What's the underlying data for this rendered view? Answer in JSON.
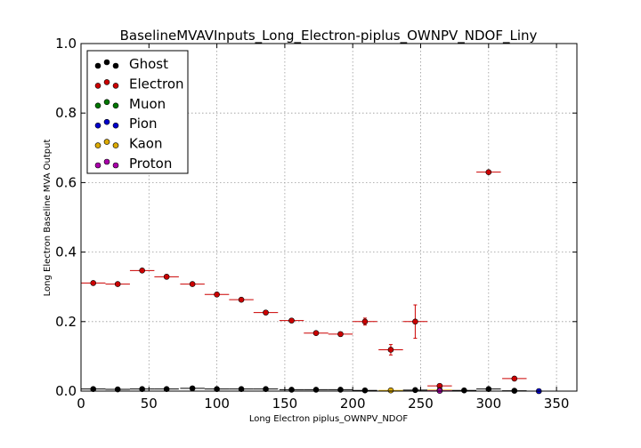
{
  "chart_data": {
    "type": "scatter",
    "title": "BaselineMVAVInputs_Long_Electron-piplus_OWNPV_NDOF_Liny",
    "xlabel": "Long Electron piplus_OWNPV_NDOF",
    "ylabel": "Long Electron Baseline MVA Output",
    "xlim": [
      0,
      365
    ],
    "ylim": [
      0,
      1.0
    ],
    "xticks": [
      0,
      50,
      100,
      150,
      200,
      250,
      300,
      350
    ],
    "yticks": [
      "0.0",
      "0.2",
      "0.4",
      "0.6",
      "0.8",
      "1.0"
    ],
    "grid": true,
    "legend_position": "top-left",
    "series": [
      {
        "name": "Ghost",
        "color": "#000000",
        "points": [
          {
            "x": 9,
            "y": 0.006,
            "xerr": 9,
            "yerr": 0.002
          },
          {
            "x": 27,
            "y": 0.005,
            "xerr": 9,
            "yerr": 0.001
          },
          {
            "x": 45,
            "y": 0.006,
            "xerr": 9,
            "yerr": 0.001
          },
          {
            "x": 63,
            "y": 0.006,
            "xerr": 9,
            "yerr": 0.001
          },
          {
            "x": 82,
            "y": 0.008,
            "xerr": 9,
            "yerr": 0.001
          },
          {
            "x": 100,
            "y": 0.006,
            "xerr": 9,
            "yerr": 0.001
          },
          {
            "x": 118,
            "y": 0.006,
            "xerr": 9,
            "yerr": 0.001
          },
          {
            "x": 136,
            "y": 0.006,
            "xerr": 9,
            "yerr": 0.001
          },
          {
            "x": 155,
            "y": 0.004,
            "xerr": 9,
            "yerr": 0.001
          },
          {
            "x": 173,
            "y": 0.004,
            "xerr": 9,
            "yerr": 0.001
          },
          {
            "x": 191,
            "y": 0.004,
            "xerr": 9,
            "yerr": 0.001
          },
          {
            "x": 209,
            "y": 0.002,
            "xerr": 9,
            "yerr": 0.001
          },
          {
            "x": 246,
            "y": 0.003,
            "xerr": 9,
            "yerr": 0.001
          },
          {
            "x": 282,
            "y": 0.002,
            "xerr": 9,
            "yerr": 0.001
          },
          {
            "x": 300,
            "y": 0.006,
            "xerr": 9,
            "yerr": 0.002
          },
          {
            "x": 319,
            "y": 0.001,
            "xerr": 9,
            "yerr": 0.001
          }
        ]
      },
      {
        "name": "Electron",
        "color": "#cc0000",
        "points": [
          {
            "x": 9,
            "y": 0.311,
            "xerr": 9,
            "yerr": 0.003
          },
          {
            "x": 27,
            "y": 0.308,
            "xerr": 9,
            "yerr": 0.003
          },
          {
            "x": 45,
            "y": 0.347,
            "xerr": 9,
            "yerr": 0.004
          },
          {
            "x": 63,
            "y": 0.329,
            "xerr": 9,
            "yerr": 0.004
          },
          {
            "x": 82,
            "y": 0.308,
            "xerr": 9,
            "yerr": 0.004
          },
          {
            "x": 100,
            "y": 0.278,
            "xerr": 9,
            "yerr": 0.004
          },
          {
            "x": 118,
            "y": 0.263,
            "xerr": 9,
            "yerr": 0.004
          },
          {
            "x": 136,
            "y": 0.226,
            "xerr": 9,
            "yerr": 0.004
          },
          {
            "x": 155,
            "y": 0.203,
            "xerr": 9,
            "yerr": 0.004
          },
          {
            "x": 173,
            "y": 0.167,
            "xerr": 9,
            "yerr": 0.004
          },
          {
            "x": 191,
            "y": 0.164,
            "xerr": 9,
            "yerr": 0.004
          },
          {
            "x": 209,
            "y": 0.2,
            "xerr": 9,
            "yerr": 0.01
          },
          {
            "x": 228,
            "y": 0.119,
            "xerr": 9,
            "yerr": 0.015
          },
          {
            "x": 246,
            "y": 0.2,
            "xerr": 9,
            "yerr": 0.048
          },
          {
            "x": 264,
            "y": 0.015,
            "xerr": 9,
            "yerr": 0.005
          },
          {
            "x": 300,
            "y": 0.63,
            "xerr": 9,
            "yerr": 0.004
          },
          {
            "x": 319,
            "y": 0.036,
            "xerr": 9,
            "yerr": 0.004
          }
        ]
      },
      {
        "name": "Muon",
        "color": "#007700",
        "points": []
      },
      {
        "name": "Pion",
        "color": "#0000cc",
        "points": [
          {
            "x": 337,
            "y": 0.0,
            "xerr": 9,
            "yerr": 0.001
          }
        ]
      },
      {
        "name": "Kaon",
        "color": "#ddaa00",
        "points": [
          {
            "x": 228,
            "y": 0.002,
            "xerr": 9,
            "yerr": 0.001
          },
          {
            "x": 264,
            "y": 0.003,
            "xerr": 9,
            "yerr": 0.001
          }
        ]
      },
      {
        "name": "Proton",
        "color": "#aa00aa",
        "points": [
          {
            "x": 264,
            "y": 0.001,
            "xerr": 9,
            "yerr": 0.001
          }
        ]
      }
    ]
  }
}
